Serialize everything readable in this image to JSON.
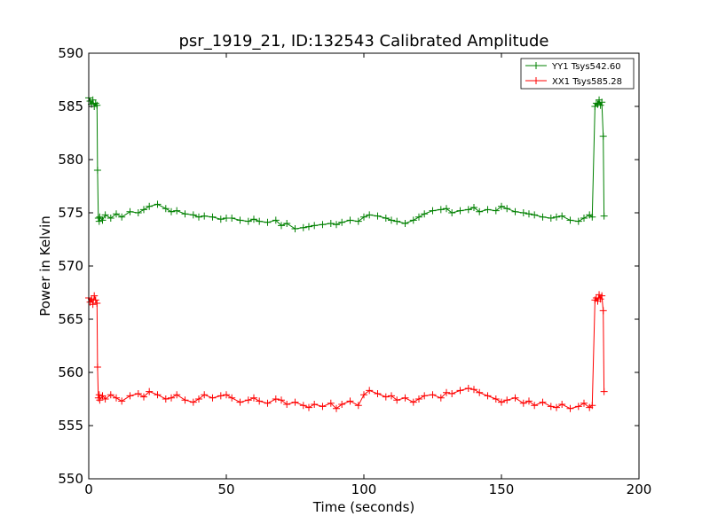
{
  "chart_data": {
    "type": "line",
    "title": "psr_1919_21, ID:132543 Calibrated Amplitude",
    "xlabel": "Time (seconds)",
    "ylabel": "Power in Kelvin",
    "xlim": [
      0,
      200
    ],
    "ylim": [
      550,
      590
    ],
    "xticks": [
      0,
      50,
      100,
      150,
      200
    ],
    "yticks": [
      550,
      555,
      560,
      565,
      570,
      575,
      580,
      585,
      590
    ],
    "xtick_labels": [
      "0",
      "50",
      "100",
      "150",
      "200"
    ],
    "ytick_labels": [
      "550",
      "555",
      "560",
      "565",
      "570",
      "575",
      "580",
      "585",
      "590"
    ],
    "grid": false,
    "legend_position": "top-right",
    "marker": "+",
    "series": [
      {
        "name": "YY1 Tsys542.60",
        "color": "#008000",
        "x": [
          0,
          0.5,
          1,
          1.5,
          2,
          2.5,
          3,
          3.2,
          3.5,
          3.8,
          4,
          5,
          6,
          8,
          10,
          12,
          15,
          18,
          20,
          22,
          25,
          28,
          30,
          32,
          35,
          38,
          40,
          42,
          45,
          48,
          50,
          52,
          55,
          58,
          60,
          62,
          65,
          68,
          70,
          72,
          75,
          78,
          80,
          82,
          85,
          88,
          90,
          92,
          95,
          98,
          100,
          102,
          105,
          108,
          110,
          112,
          115,
          118,
          120,
          122,
          125,
          128,
          130,
          132,
          135,
          138,
          140,
          142,
          145,
          148,
          150,
          152,
          155,
          158,
          160,
          162,
          165,
          168,
          170,
          172,
          175,
          178,
          180,
          182,
          183,
          184,
          184.5,
          185,
          185.5,
          186,
          186.5,
          187,
          187.3
        ],
        "y": [
          585.8,
          585.5,
          585.2,
          585.6,
          585.0,
          585.3,
          585.1,
          579.0,
          574.5,
          574.2,
          574.6,
          574.3,
          574.8,
          574.5,
          574.9,
          574.6,
          575.1,
          575.0,
          575.3,
          575.6,
          575.8,
          575.4,
          575.1,
          575.2,
          574.9,
          574.8,
          574.6,
          574.7,
          574.6,
          574.4,
          574.5,
          574.5,
          574.3,
          574.2,
          574.4,
          574.2,
          574.1,
          574.3,
          573.8,
          574.0,
          573.5,
          573.6,
          573.7,
          573.8,
          573.9,
          574.0,
          573.9,
          574.1,
          574.3,
          574.2,
          574.6,
          574.8,
          574.7,
          574.5,
          574.3,
          574.2,
          574.0,
          574.3,
          574.6,
          574.9,
          575.2,
          575.3,
          575.4,
          575.0,
          575.2,
          575.3,
          575.5,
          575.1,
          575.3,
          575.2,
          575.6,
          575.4,
          575.1,
          575.0,
          574.9,
          574.8,
          574.6,
          574.5,
          574.6,
          574.7,
          574.3,
          574.2,
          574.5,
          574.8,
          574.6,
          585.0,
          585.3,
          585.2,
          585.6,
          585.1,
          585.4,
          582.2,
          574.7
        ]
      },
      {
        "name": "XX1 Tsys585.28",
        "color": "#ff0000",
        "x": [
          0,
          0.5,
          1,
          1.5,
          2,
          2.5,
          3,
          3.2,
          3.5,
          3.8,
          4,
          5,
          6,
          8,
          10,
          12,
          15,
          18,
          20,
          22,
          25,
          28,
          30,
          32,
          35,
          38,
          40,
          42,
          45,
          48,
          50,
          52,
          55,
          58,
          60,
          62,
          65,
          68,
          70,
          72,
          75,
          78,
          80,
          82,
          85,
          88,
          90,
          92,
          95,
          98,
          100,
          102,
          105,
          108,
          110,
          112,
          115,
          118,
          120,
          122,
          125,
          128,
          130,
          132,
          135,
          138,
          140,
          142,
          145,
          148,
          150,
          152,
          155,
          158,
          160,
          162,
          165,
          168,
          170,
          172,
          175,
          178,
          180,
          182,
          183,
          184,
          184.5,
          185,
          185.5,
          186,
          186.5,
          187,
          187.3
        ],
        "y": [
          567.0,
          566.6,
          566.9,
          566.4,
          567.2,
          566.8,
          566.5,
          560.5,
          557.6,
          557.9,
          557.4,
          557.8,
          557.5,
          557.9,
          557.6,
          557.3,
          557.8,
          558.0,
          557.7,
          558.2,
          557.9,
          557.5,
          557.6,
          557.9,
          557.4,
          557.2,
          557.5,
          557.9,
          557.6,
          557.8,
          557.9,
          557.6,
          557.2,
          557.4,
          557.6,
          557.3,
          557.1,
          557.5,
          557.4,
          557.0,
          557.2,
          556.9,
          556.7,
          557.0,
          556.8,
          557.1,
          556.6,
          557.0,
          557.3,
          556.9,
          557.9,
          558.3,
          558.0,
          557.7,
          557.8,
          557.4,
          557.6,
          557.2,
          557.5,
          557.8,
          557.9,
          557.6,
          558.1,
          558.0,
          558.3,
          558.5,
          558.4,
          558.1,
          557.8,
          557.5,
          557.2,
          557.4,
          557.6,
          557.1,
          557.3,
          556.9,
          557.2,
          556.8,
          556.7,
          557.0,
          556.6,
          556.8,
          557.1,
          556.7,
          556.9,
          566.8,
          567.0,
          566.7,
          567.3,
          566.9,
          567.2,
          565.8,
          558.2
        ]
      }
    ]
  }
}
